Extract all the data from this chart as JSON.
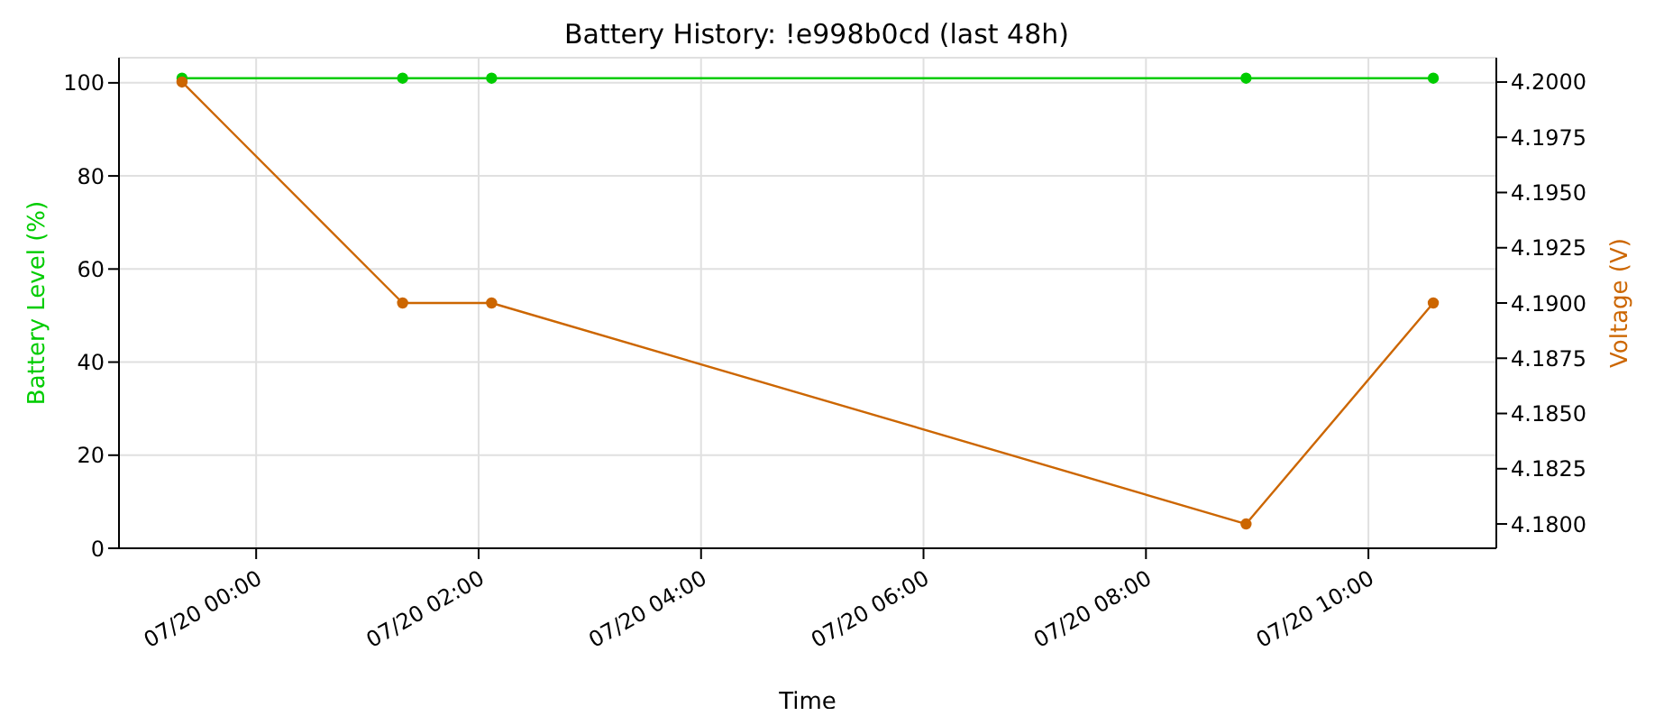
{
  "chart_data": {
    "type": "line",
    "title": "Battery History: !e998b0cd (last 48h)",
    "xlabel": "Time",
    "ylabel": "Battery Level (%)",
    "y2label": "Voltage (V)",
    "x": [
      "--07-19T23:20",
      "--07-20T01:19",
      "--07-20T02:07",
      "--07-20T08:54",
      "--07-20T10:35"
    ],
    "series": [
      {
        "color": "#00cc00",
        "values": [
          101,
          101,
          101,
          101,
          101
        ]
      },
      {
        "color": "#cc6600",
        "axis": "y2",
        "values": [
          4.2,
          4.19,
          4.19,
          4.18,
          4.19
        ]
      }
    ],
    "xlim": [
      "--07-19T22:46",
      "--07-20T11:09"
    ],
    "xticks": [
      {
        "value": "--07-20T00:00",
        "label": "07/20 00:00"
      },
      {
        "value": "--07-20T02:00",
        "label": "07/20 02:00"
      },
      {
        "value": "--07-20T04:00",
        "label": "07/20 04:00"
      },
      {
        "value": "--07-20T06:00",
        "label": "07/20 06:00"
      },
      {
        "value": "--07-20T08:00",
        "label": "07/20 08:00"
      },
      {
        "value": "--07-20T10:00",
        "label": "07/20 10:00"
      }
    ],
    "ylim": [
      0,
      105.4
    ],
    "yticks": [
      0,
      20,
      40,
      60,
      80,
      100
    ],
    "y2lim": [
      4.1789,
      4.2011
    ],
    "y2ticks": [
      {
        "value": 4.18,
        "label": "4.1800"
      },
      {
        "value": 4.1825,
        "label": "4.1825"
      },
      {
        "value": 4.185,
        "label": "4.1850"
      },
      {
        "value": 4.1875,
        "label": "4.1875"
      },
      {
        "value": 4.19,
        "label": "4.1900"
      },
      {
        "value": 4.1925,
        "label": "4.1925"
      },
      {
        "value": 4.195,
        "label": "4.1950"
      },
      {
        "value": 4.1975,
        "label": "4.1975"
      },
      {
        "value": 4.2,
        "label": "4.2000"
      }
    ],
    "grid": true,
    "marker": "circle",
    "line_style": "solid",
    "legend": false
  }
}
